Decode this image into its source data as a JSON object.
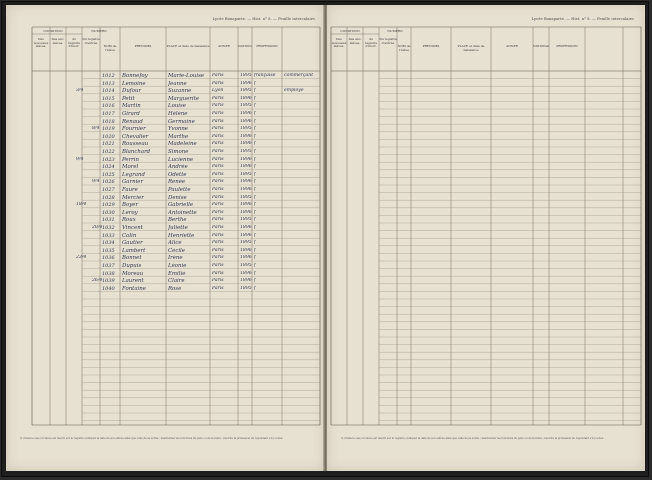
{
  "register": {
    "left_running_head": "Lycée Bonaparte. — Hist. n° 8. — Feuille intercalaire.",
    "right_running_head": "Lycée Bonaparte. — Hist. n° 8. — Feuille intercalaire."
  },
  "left_headers": {
    "group_condition": "CONDITION",
    "group_numero": "NUMÉRO",
    "cols": [
      "Des nouveaux élèves.",
      "Des anc. élèves.",
      "du registre d'inscr.",
      "Du registre d'entrée",
      "NOM de l'élève",
      "PRÉNOMS",
      "PLACE et date de naissance",
      "ANNÉE",
      "NATIONALITÉ",
      "PROFESSION"
    ]
  },
  "right_headers": {
    "group_condition": "CONDITION",
    "group_numero": "NUMÉRO",
    "cols": [
      "Des nouveaux élèves.",
      "Des anc. élèves.",
      "du registre d'inscr.",
      "Du registre d'entrée",
      "NOM de l'élève",
      "PRÉNOMS",
      "PLACE et date de naissance",
      "ANNÉE",
      "NATIONALITÉ",
      "PROFESSION"
    ]
  },
  "left_footnote": "(1) Dans le cas où l'élève est inscrit sur le registre, indiquer la date de son entrée ainsi que celle de sa sortie ; mentionner les fonctions du père ou de la mère ; inscrire la profession du répondant s'il y a lieu.",
  "right_footnote": "(1) Dans le cas où l'élève est inscrit sur le registre, indiquer la date de son entrée ainsi que celle de sa sortie ; mentionner les fonctions du père ou de la mère ; inscrire la profession du répondant s'il y a lieu.",
  "entries": [
    {
      "n": "1012",
      "nom": "Bonnefoy",
      "prenom": "Marie-Louise",
      "lieu": "Paris",
      "an": "1895",
      "nat": "française",
      "prof": "commerçant"
    },
    {
      "n": "1013",
      "nom": "Lemoine",
      "prenom": "Jeanne",
      "lieu": "Paris",
      "an": "1896",
      "nat": "f",
      "prof": ""
    },
    {
      "n": "1014",
      "nom": "Dufour",
      "prenom": "Suzanne",
      "lieu": "Lyon",
      "an": "1895",
      "nat": "f",
      "prof": "employé"
    },
    {
      "n": "1015",
      "nom": "Petit",
      "prenom": "Marguerite",
      "lieu": "Paris",
      "an": "1896",
      "nat": "f",
      "prof": ""
    },
    {
      "n": "1016",
      "nom": "Martin",
      "prenom": "Louise",
      "lieu": "Paris",
      "an": "1895",
      "nat": "f",
      "prof": ""
    },
    {
      "n": "1017",
      "nom": "Girard",
      "prenom": "Hélène",
      "lieu": "Paris",
      "an": "1896",
      "nat": "f",
      "prof": ""
    },
    {
      "n": "1018",
      "nom": "Renaud",
      "prenom": "Germaine",
      "lieu": "Paris",
      "an": "1896",
      "nat": "f",
      "prof": ""
    },
    {
      "n": "1019",
      "nom": "Fournier",
      "prenom": "Yvonne",
      "lieu": "Paris",
      "an": "1895",
      "nat": "f",
      "prof": ""
    },
    {
      "n": "1020",
      "nom": "Chevalier",
      "prenom": "Marthe",
      "lieu": "Paris",
      "an": "1896",
      "nat": "f",
      "prof": ""
    },
    {
      "n": "1021",
      "nom": "Rousseau",
      "prenom": "Madeleine",
      "lieu": "Paris",
      "an": "1896",
      "nat": "f",
      "prof": ""
    },
    {
      "n": "1022",
      "nom": "Blanchard",
      "prenom": "Simone",
      "lieu": "Paris",
      "an": "1895",
      "nat": "f",
      "prof": ""
    },
    {
      "n": "1023",
      "nom": "Perrin",
      "prenom": "Lucienne",
      "lieu": "Paris",
      "an": "1896",
      "nat": "f",
      "prof": ""
    },
    {
      "n": "1024",
      "nom": "Morel",
      "prenom": "Andrée",
      "lieu": "Paris",
      "an": "1896",
      "nat": "f",
      "prof": ""
    },
    {
      "n": "1025",
      "nom": "Legrand",
      "prenom": "Odette",
      "lieu": "Paris",
      "an": "1895",
      "nat": "f",
      "prof": ""
    },
    {
      "n": "1026",
      "nom": "Garnier",
      "prenom": "Renée",
      "lieu": "Paris",
      "an": "1896",
      "nat": "f",
      "prof": ""
    },
    {
      "n": "1027",
      "nom": "Faure",
      "prenom": "Paulette",
      "lieu": "Paris",
      "an": "1896",
      "nat": "f",
      "prof": ""
    },
    {
      "n": "1028",
      "nom": "Mercier",
      "prenom": "Denise",
      "lieu": "Paris",
      "an": "1895",
      "nat": "f",
      "prof": ""
    },
    {
      "n": "1029",
      "nom": "Boyer",
      "prenom": "Gabrielle",
      "lieu": "Paris",
      "an": "1896",
      "nat": "f",
      "prof": ""
    },
    {
      "n": "1030",
      "nom": "Leroy",
      "prenom": "Antoinette",
      "lieu": "Paris",
      "an": "1896",
      "nat": "f",
      "prof": ""
    },
    {
      "n": "1031",
      "nom": "Roux",
      "prenom": "Berthe",
      "lieu": "Paris",
      "an": "1895",
      "nat": "f",
      "prof": ""
    },
    {
      "n": "1032",
      "nom": "Vincent",
      "prenom": "Juliette",
      "lieu": "Paris",
      "an": "1896",
      "nat": "f",
      "prof": ""
    },
    {
      "n": "1033",
      "nom": "Colin",
      "prenom": "Henriette",
      "lieu": "Paris",
      "an": "1896",
      "nat": "f",
      "prof": ""
    },
    {
      "n": "1034",
      "nom": "Gautier",
      "prenom": "Alice",
      "lieu": "Paris",
      "an": "1895",
      "nat": "f",
      "prof": ""
    },
    {
      "n": "1035",
      "nom": "Lambert",
      "prenom": "Cécile",
      "lieu": "Paris",
      "an": "1896",
      "nat": "f",
      "prof": ""
    },
    {
      "n": "1036",
      "nom": "Bonnet",
      "prenom": "Irène",
      "lieu": "Paris",
      "an": "1896",
      "nat": "f",
      "prof": ""
    },
    {
      "n": "1037",
      "nom": "Dupuis",
      "prenom": "Léonie",
      "lieu": "Paris",
      "an": "1895",
      "nat": "f",
      "prof": ""
    },
    {
      "n": "1038",
      "nom": "Moreau",
      "prenom": "Émilie",
      "lieu": "Paris",
      "an": "1896",
      "nat": "f",
      "prof": ""
    },
    {
      "n": "1039",
      "nom": "Laurent",
      "prenom": "Claire",
      "lieu": "Paris",
      "an": "1896",
      "nat": "f",
      "prof": ""
    },
    {
      "n": "1040",
      "nom": "Fontaine",
      "prenom": "Rose",
      "lieu": "Paris",
      "an": "1895",
      "nat": "f",
      "prof": ""
    }
  ],
  "margin_dates": [
    "3/4",
    "8/4",
    "9/4",
    "9/4",
    "18/4",
    "20/4",
    "23/4",
    "26/4"
  ]
}
